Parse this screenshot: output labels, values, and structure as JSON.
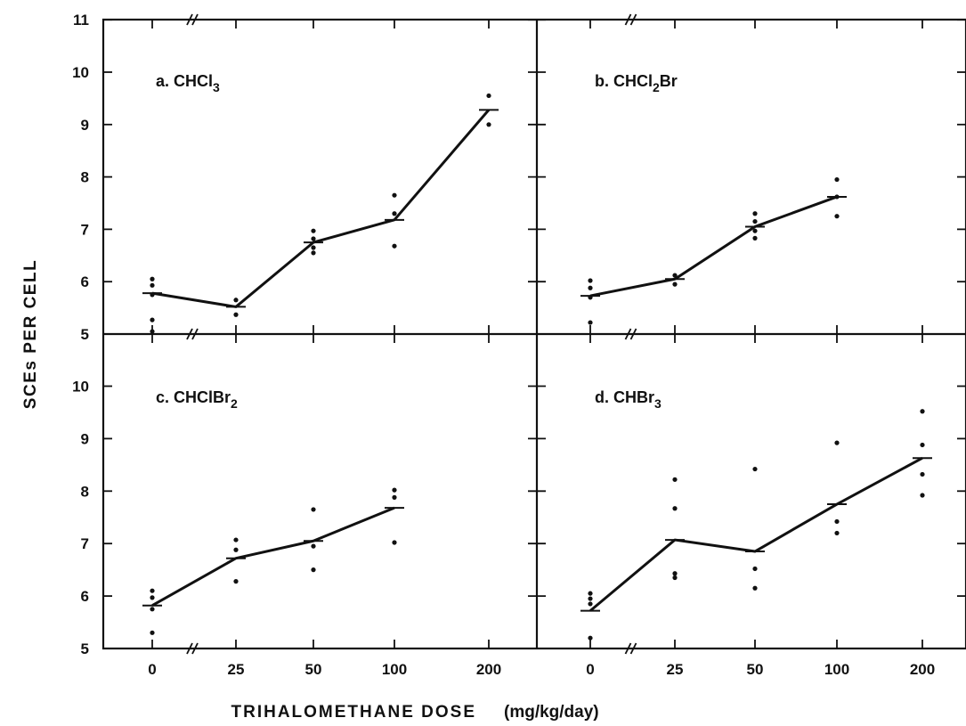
{
  "figure": {
    "y_axis_title": "SCEs PER CELL",
    "x_axis_title": "TRIHALOMETHANE DOSE",
    "x_axis_units": "(mg/kg/day)",
    "x_tick_labels": [
      "0",
      "25",
      "50",
      "100",
      "200"
    ],
    "y_tick_labels_top": [
      "5",
      "6",
      "7",
      "8",
      "9",
      "10",
      "11"
    ],
    "y_tick_labels_bottom": [
      "5",
      "6",
      "7",
      "8",
      "9",
      "10"
    ]
  },
  "chart_data": [
    {
      "type": "scatter",
      "panel": "a",
      "title": "a. CHCl",
      "title_sub": "3",
      "title_tail": "",
      "categories": [
        "0",
        "25",
        "50",
        "100",
        "200"
      ],
      "ylim": [
        5,
        11
      ],
      "series": [
        {
          "role": "mean",
          "values": [
            5.78,
            5.52,
            6.75,
            7.18,
            9.28
          ]
        },
        {
          "role": "observations",
          "points": [
            [
              0,
              6.05
            ],
            [
              0,
              5.93
            ],
            [
              0,
              5.75
            ],
            [
              0,
              5.27
            ],
            [
              0,
              5.05
            ],
            [
              25,
              5.65
            ],
            [
              25,
              5.37
            ],
            [
              50,
              6.97
            ],
            [
              50,
              6.82
            ],
            [
              50,
              6.65
            ],
            [
              50,
              6.55
            ],
            [
              100,
              7.65
            ],
            [
              100,
              7.3
            ],
            [
              100,
              6.68
            ],
            [
              200,
              9.55
            ],
            [
              200,
              9.0
            ]
          ]
        }
      ]
    },
    {
      "type": "scatter",
      "panel": "b",
      "title": "b. CHCl",
      "title_sub": "2",
      "title_tail": "Br",
      "categories": [
        "0",
        "25",
        "50",
        "100"
      ],
      "ylim": [
        5,
        11
      ],
      "series": [
        {
          "role": "mean",
          "values": [
            5.73,
            6.05,
            7.05,
            7.62
          ]
        },
        {
          "role": "observations",
          "points": [
            [
              0,
              6.02
            ],
            [
              0,
              5.88
            ],
            [
              0,
              5.7
            ],
            [
              0,
              5.22
            ],
            [
              25,
              6.12
            ],
            [
              25,
              5.95
            ],
            [
              50,
              7.3
            ],
            [
              50,
              7.15
            ],
            [
              50,
              6.97
            ],
            [
              50,
              6.83
            ],
            [
              100,
              7.95
            ],
            [
              100,
              7.62
            ],
            [
              100,
              7.25
            ]
          ]
        }
      ]
    },
    {
      "type": "scatter",
      "panel": "c",
      "title": "c. CHClBr",
      "title_sub": "2",
      "title_tail": "",
      "categories": [
        "0",
        "25",
        "50",
        "100",
        "200"
      ],
      "ylim": [
        5,
        10.5
      ],
      "series": [
        {
          "role": "mean",
          "values": [
            5.82,
            6.72,
            7.05,
            7.68
          ]
        },
        {
          "role": "observations",
          "points": [
            [
              0,
              6.1
            ],
            [
              0,
              5.97
            ],
            [
              0,
              5.75
            ],
            [
              0,
              5.3
            ],
            [
              25,
              7.07
            ],
            [
              25,
              6.88
            ],
            [
              25,
              6.28
            ],
            [
              50,
              7.65
            ],
            [
              50,
              6.95
            ],
            [
              50,
              6.5
            ],
            [
              100,
              8.02
            ],
            [
              100,
              7.88
            ],
            [
              100,
              7.02
            ]
          ]
        }
      ]
    },
    {
      "type": "scatter",
      "panel": "d",
      "title": "d. CHBr",
      "title_sub": "3",
      "title_tail": "",
      "categories": [
        "0",
        "25",
        "50",
        "100",
        "200"
      ],
      "ylim": [
        5,
        10.5
      ],
      "series": [
        {
          "role": "mean",
          "values": [
            5.72,
            7.07,
            6.85,
            7.75,
            8.63
          ]
        },
        {
          "role": "observations",
          "points": [
            [
              0,
              6.05
            ],
            [
              0,
              5.95
            ],
            [
              0,
              5.85
            ],
            [
              0,
              5.2
            ],
            [
              25,
              8.22
            ],
            [
              25,
              7.67
            ],
            [
              25,
              6.43
            ],
            [
              25,
              6.35
            ],
            [
              50,
              8.42
            ],
            [
              50,
              6.52
            ],
            [
              50,
              6.15
            ],
            [
              100,
              8.92
            ],
            [
              100,
              7.42
            ],
            [
              100,
              7.2
            ],
            [
              200,
              9.52
            ],
            [
              200,
              8.88
            ],
            [
              200,
              8.32
            ],
            [
              200,
              7.92
            ]
          ]
        }
      ]
    }
  ]
}
